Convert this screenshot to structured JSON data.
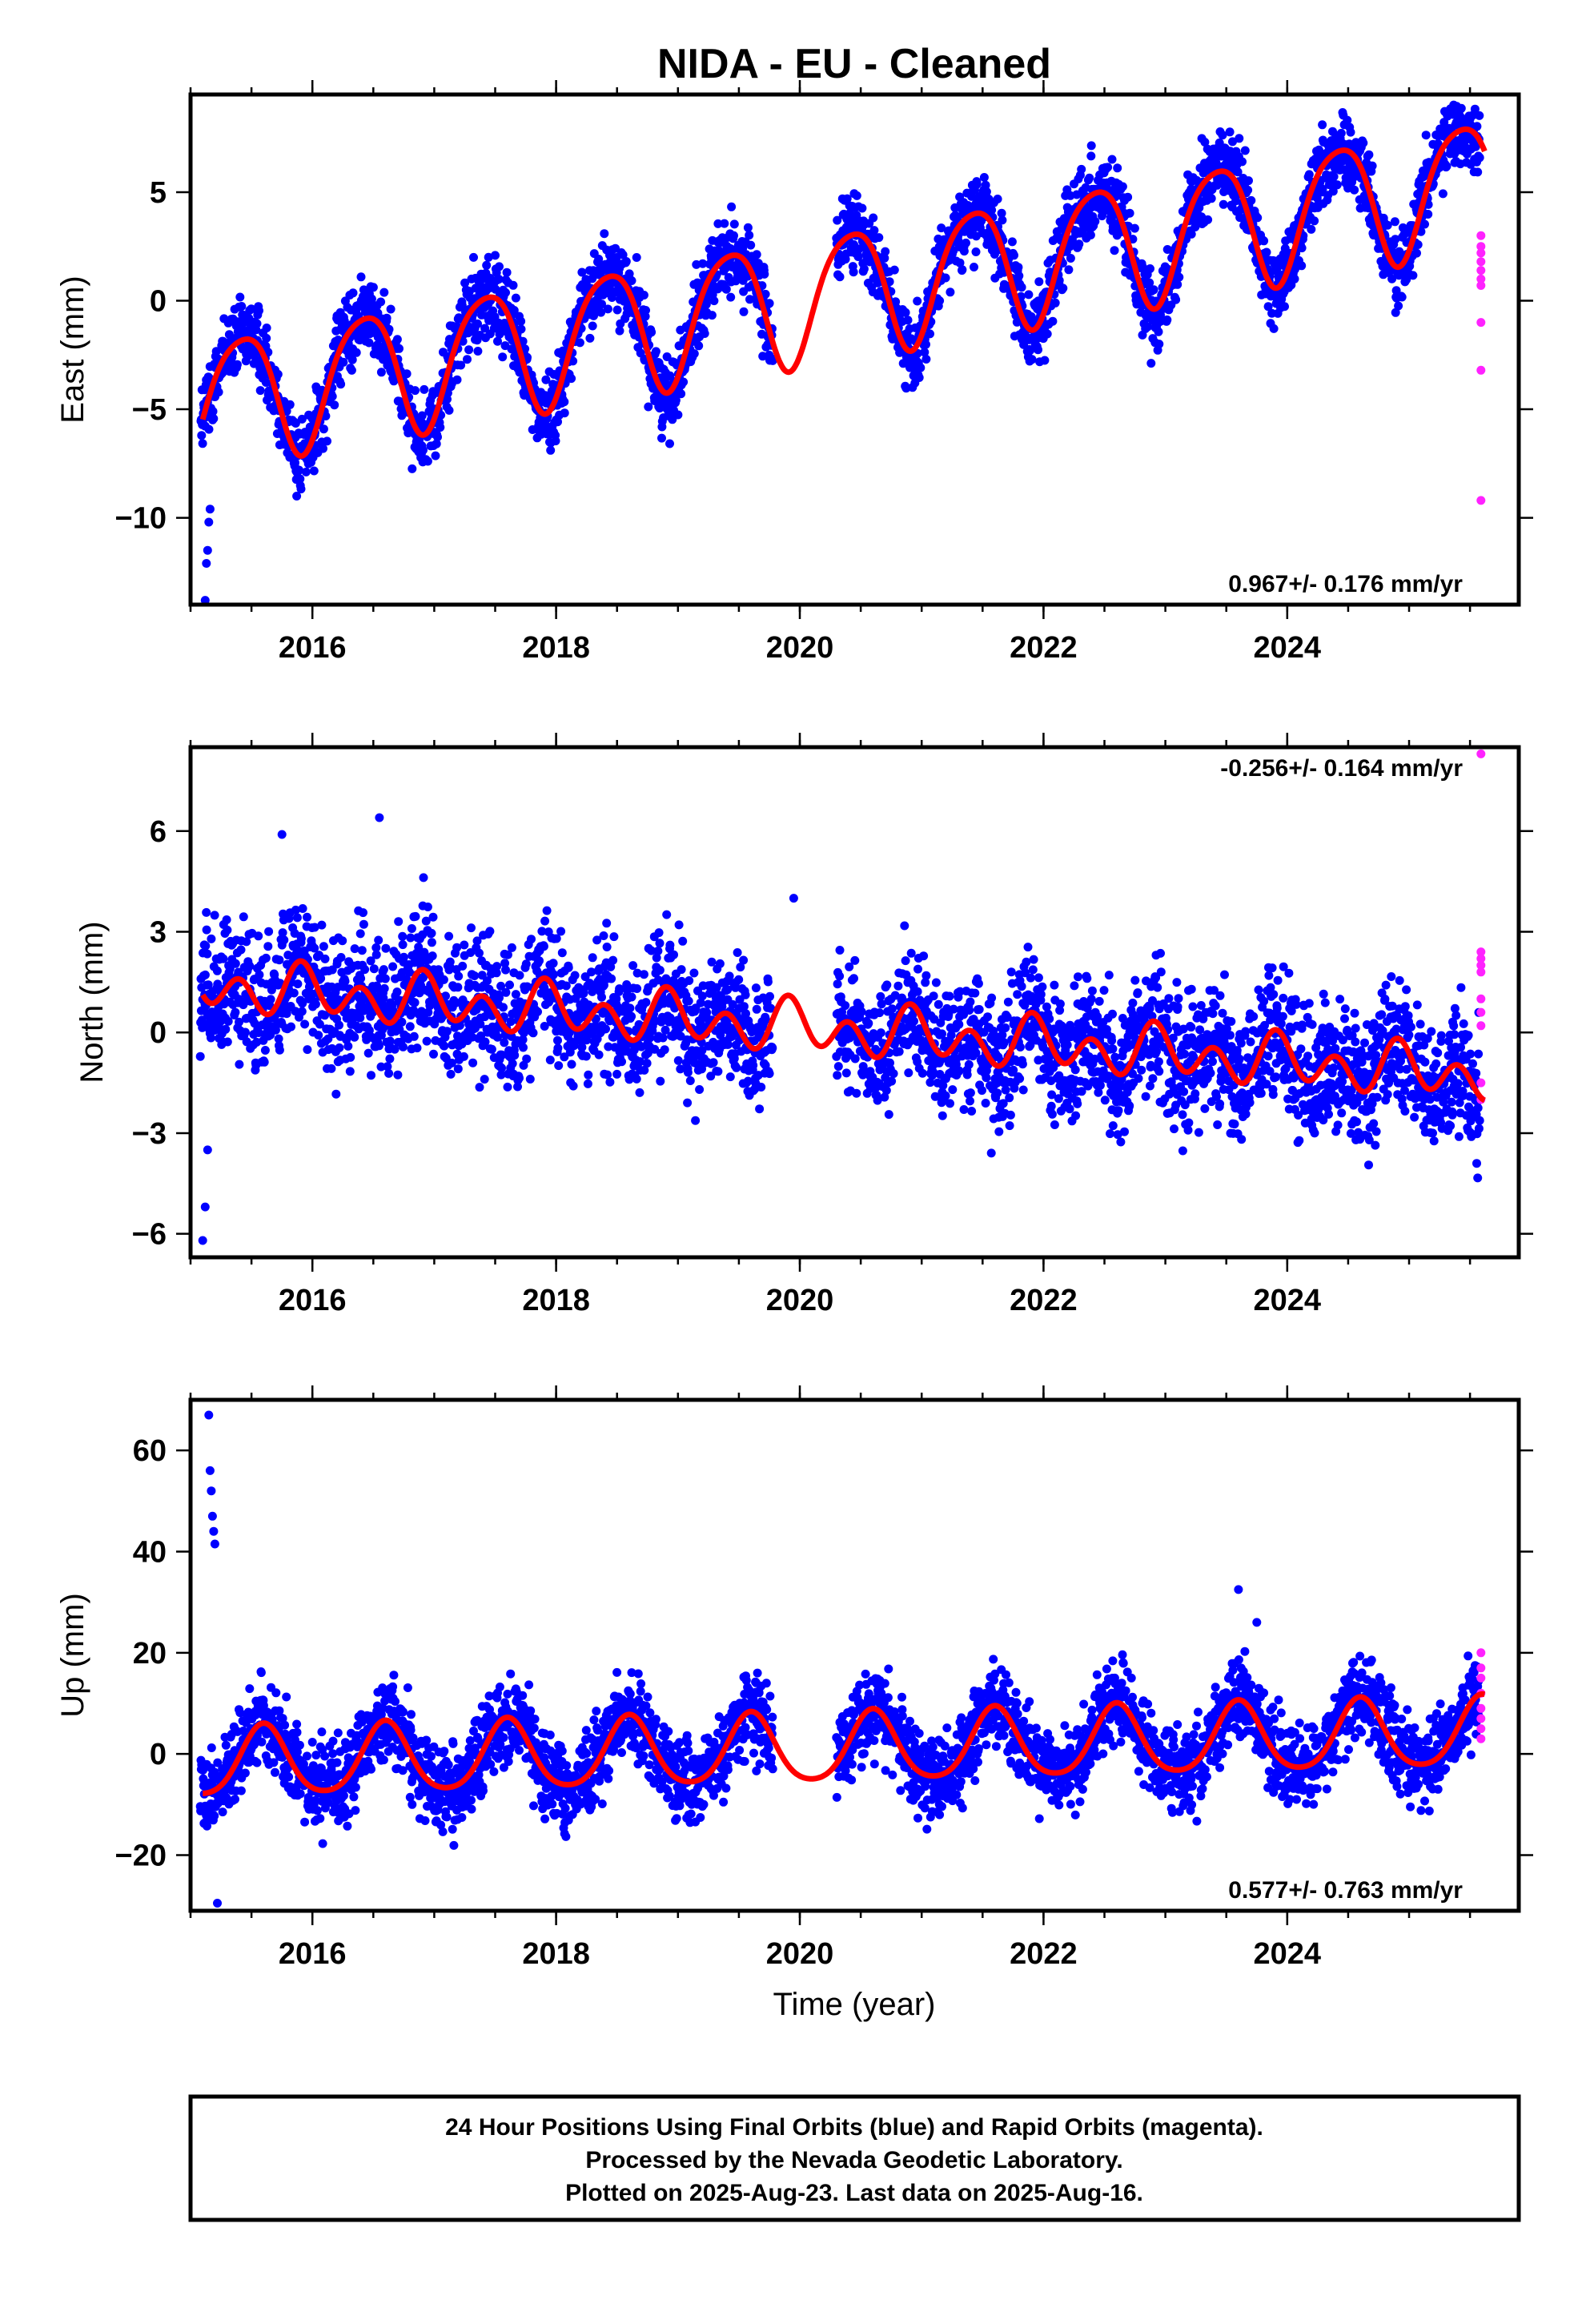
{
  "title": "NIDA  - EU - Cleaned",
  "colors": {
    "final_orbits": "#0000ff",
    "rapid_orbits": "#ff22ff",
    "model": "#ff0000",
    "frame": "#000000"
  },
  "xlabel": "Time (year)",
  "footer": {
    "line1": "24 Hour Positions Using Final Orbits (blue) and Rapid Orbits (magenta).",
    "line2": "Processed by the Nevada Geodetic Laboratory.",
    "line3": "Plotted on 2025-Aug-23. Last data on 2025-Aug-16."
  },
  "chart_data": [
    {
      "type": "scatter",
      "component": "East",
      "ylabel": "East (mm)",
      "xlim": [
        2015.0,
        2025.9
      ],
      "ylim": [
        -14,
        9.5
      ],
      "xticks": [
        2016,
        2018,
        2020,
        2022,
        2024
      ],
      "xtick_labels": [
        "2016",
        "2018",
        "2020",
        "2022",
        "2024"
      ],
      "yticks": [
        -10,
        -5,
        0,
        5
      ],
      "ytick_labels": [
        "−10",
        "−5",
        "0",
        "5"
      ],
      "rate_text": "0.967+/- 0.176 mm/yr",
      "rate_position": "bottom-right",
      "model": {
        "t0": 2015.1,
        "t1": 2025.62,
        "offset": -4.6,
        "rate": 0.967,
        "annual_amp": 2.9,
        "annual_peak": 0.42,
        "semiannual_amp": 0.45,
        "semiannual_peak": 0.15
      },
      "final_orbits": {
        "start": 2015.08,
        "end": 2025.58,
        "gaps": [
          [
            2019.78,
            2020.3
          ]
        ],
        "scatter": 0.85,
        "outliers": [
          [
            2015.12,
            -13.8
          ],
          [
            2015.13,
            -12.1
          ],
          [
            2015.14,
            -11.5
          ],
          [
            2015.15,
            -10.2
          ],
          [
            2015.16,
            -9.6
          ]
        ]
      },
      "rapid_orbits": {
        "x": 2025.59,
        "y": [
          3.0,
          2.5,
          2.2,
          1.8,
          1.4,
          1.0,
          0.7,
          -1.0,
          -3.2,
          -9.2
        ]
      }
    },
    {
      "type": "scatter",
      "component": "North",
      "ylabel": "North (mm)",
      "xlim": [
        2015.0,
        2025.9
      ],
      "ylim": [
        -6.7,
        8.5
      ],
      "xticks": [
        2016,
        2018,
        2020,
        2022,
        2024
      ],
      "xtick_labels": [
        "2016",
        "2018",
        "2020",
        "2022",
        "2024"
      ],
      "yticks": [
        -6,
        -3,
        0,
        3,
        6
      ],
      "ytick_labels": [
        "−6",
        "−3",
        "0",
        "3",
        "6"
      ],
      "rate_text": "-0.256+/- 0.164 mm/yr",
      "rate_position": "top-right",
      "model": {
        "t0": 2015.1,
        "t1": 2025.62,
        "offset": 1.4,
        "rate": -0.256,
        "annual_amp": 0.35,
        "annual_peak": 0.95,
        "semiannual_amp": 0.6,
        "semiannual_peak": 0.4
      },
      "final_orbits": {
        "start": 2015.08,
        "end": 2025.58,
        "gaps": [
          [
            2019.78,
            2020.3
          ]
        ],
        "scatter": 0.95,
        "outliers": [
          [
            2015.1,
            -6.2
          ],
          [
            2015.12,
            -5.2
          ],
          [
            2015.14,
            -3.5
          ],
          [
            2016.55,
            6.4
          ],
          [
            2015.75,
            5.9
          ],
          [
            2019.95,
            4.0
          ]
        ]
      },
      "rapid_orbits": {
        "x": 2025.59,
        "y": [
          8.3,
          2.4,
          2.2,
          2.0,
          1.8,
          1.0,
          0.6,
          0.2,
          -1.5,
          -2.0
        ]
      }
    },
    {
      "type": "scatter",
      "component": "Up",
      "ylabel": "Up (mm)",
      "xlim": [
        2015.0,
        2025.9
      ],
      "ylim": [
        -31,
        70
      ],
      "xticks": [
        2016,
        2018,
        2020,
        2022,
        2024
      ],
      "xtick_labels": [
        "2016",
        "2018",
        "2020",
        "2022",
        "2024"
      ],
      "yticks": [
        -20,
        0,
        20,
        40,
        60
      ],
      "ytick_labels": [
        "−20",
        "0",
        "20",
        "40",
        "60"
      ],
      "rate_text": "0.577+/- 0.763 mm/yr",
      "rate_position": "bottom-right",
      "model": {
        "t0": 2015.1,
        "t1": 2025.62,
        "offset": -2.0,
        "rate": 0.577,
        "annual_amp": 6.8,
        "annual_peak": 0.6,
        "semiannual_amp": 1.0,
        "semiannual_peak": 0.6
      },
      "final_orbits": {
        "start": 2015.08,
        "end": 2025.58,
        "gaps": [
          [
            2019.78,
            2020.3
          ]
        ],
        "scatter": 4.0,
        "outliers": [
          [
            2015.15,
            67.0
          ],
          [
            2015.16,
            56.0
          ],
          [
            2015.17,
            52.0
          ],
          [
            2015.18,
            47.0
          ],
          [
            2015.19,
            44.0
          ],
          [
            2015.2,
            41.5
          ],
          [
            2015.22,
            -29.5
          ],
          [
            2023.6,
            32.5
          ],
          [
            2023.75,
            26.0
          ]
        ]
      },
      "rapid_orbits": {
        "x": 2025.59,
        "y": [
          20.0,
          17.0,
          15.0,
          12.0,
          9.0,
          7.0,
          5.0,
          3.0
        ]
      }
    }
  ]
}
